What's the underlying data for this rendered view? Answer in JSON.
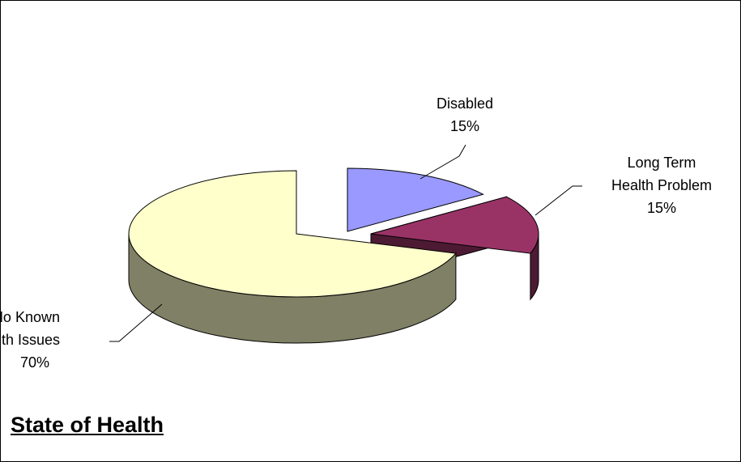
{
  "chart_data": {
    "type": "pie",
    "title": "State of Health",
    "three_d": true,
    "exploded": true,
    "slices": [
      {
        "name": "Disabled",
        "value": 15,
        "label_lines": [
          "Disabled",
          "15%"
        ],
        "top_color": "#9999FF",
        "side_color": "#4D4D80"
      },
      {
        "name": "Long Term Health Problem",
        "value": 15,
        "label_lines": [
          "Long Term",
          "Health Problem",
          "15%"
        ],
        "top_color": "#993366",
        "side_color": "#4D1A33"
      },
      {
        "name": "No Known Health Issues",
        "value": 70,
        "label_lines": [
          "No Known",
          "Health Issues",
          "70%"
        ],
        "top_color": "#FFFFCC",
        "side_color": "#808066"
      }
    ]
  }
}
